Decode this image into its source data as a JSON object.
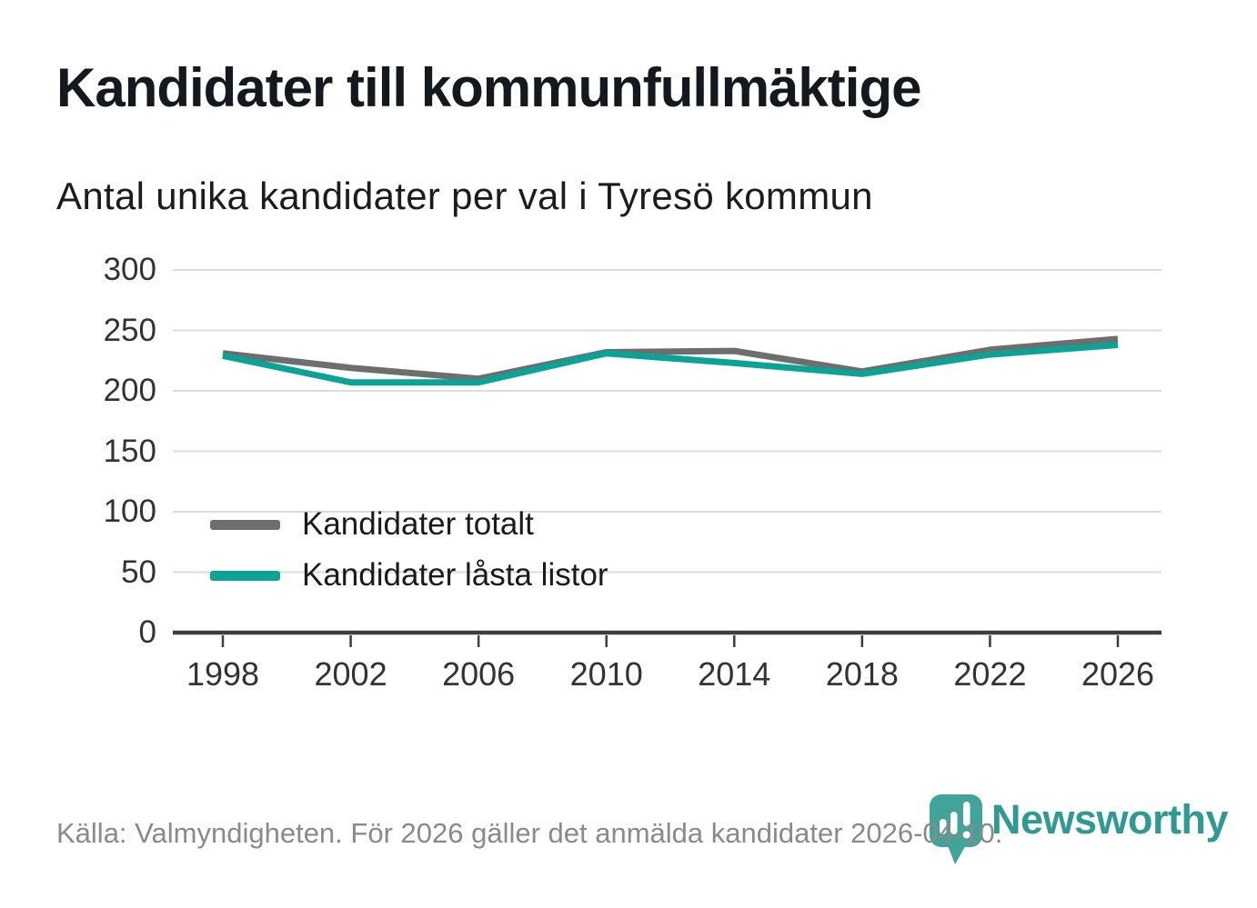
{
  "title": "Kandidater till kommunfullmäktige",
  "subtitle": "Antal unika kandidater per val i Tyresö kommun",
  "footer": {
    "source": "Källa: Valmyndigheten. För 2026 gäller det anmälda kandidater 2026-04-10."
  },
  "branding": {
    "wordmark": "Newsworthy",
    "logo_icon": "speech-bubble-bar-chart-exclamation"
  },
  "colors": {
    "total_line": "#6e6e6e",
    "locked_line": "#0aa396",
    "grid": "#dcdcdc",
    "axis": "#3d3d3d",
    "tick_label": "#333333",
    "footer_text": "#8a8a8a",
    "brand_icon_teal": "#42a39b",
    "brand_wordmark_teal": "#2f9a93"
  },
  "chart_data": {
    "type": "line",
    "title": "Kandidater till kommunfullmäktige",
    "subtitle": "Antal unika kandidater per val i Tyresö kommun",
    "x": [
      1998,
      2002,
      2006,
      2010,
      2014,
      2018,
      2022,
      2026
    ],
    "series": [
      {
        "name": "Kandidater totalt",
        "color": "#6e6e6e",
        "values": [
          231,
          219,
          210,
          232,
          233,
          216,
          234,
          243
        ]
      },
      {
        "name": "Kandidater låsta listor",
        "color": "#0aa396",
        "values": [
          229,
          207,
          207,
          231,
          223,
          214,
          230,
          238
        ]
      }
    ],
    "xlabel": "",
    "ylabel": "",
    "ylim": [
      0,
      300
    ],
    "yticks": [
      0,
      50,
      100,
      150,
      200,
      250,
      300
    ],
    "grid": "horizontal",
    "legend_position": "inside-left-middle"
  }
}
